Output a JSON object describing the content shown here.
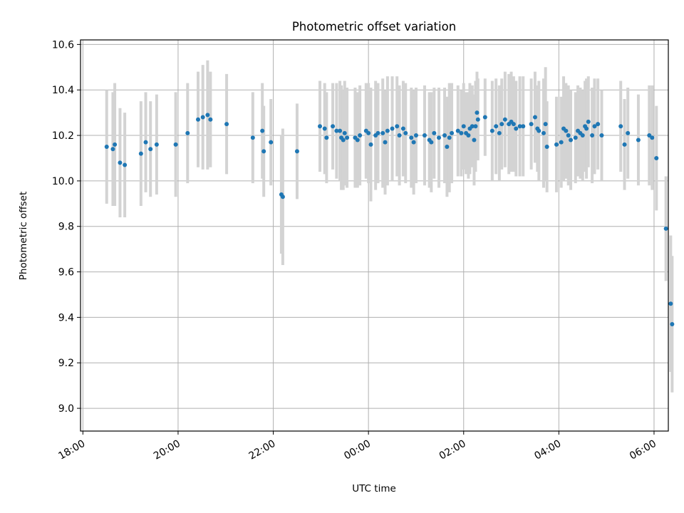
{
  "chart_data": {
    "type": "scatter",
    "title": "Photometric offset variation",
    "xlabel": "UTC time",
    "ylabel": "Photometric offset",
    "grid": true,
    "xlim": [
      -0.05,
      12.3
    ],
    "ylim": [
      8.9,
      10.62
    ],
    "x_unit": "hours since 18:00 UTC",
    "x_ticks": [
      {
        "value": 0,
        "label": "18:00"
      },
      {
        "value": 2,
        "label": "20:00"
      },
      {
        "value": 4,
        "label": "22:00"
      },
      {
        "value": 6,
        "label": "00:00"
      },
      {
        "value": 8,
        "label": "02:00"
      },
      {
        "value": 10,
        "label": "04:00"
      },
      {
        "value": 12,
        "label": "06:00"
      }
    ],
    "y_ticks": [
      {
        "value": 9.0,
        "label": "9.0"
      },
      {
        "value": 9.2,
        "label": "9.2"
      },
      {
        "value": 9.4,
        "label": "9.4"
      },
      {
        "value": 9.6,
        "label": "9.6"
      },
      {
        "value": 9.8,
        "label": "9.8"
      },
      {
        "value": 10.0,
        "label": "10.0"
      },
      {
        "value": 10.2,
        "label": "10.2"
      },
      {
        "value": 10.4,
        "label": "10.4"
      },
      {
        "value": 10.6,
        "label": "10.6"
      }
    ],
    "marker_color": "#1f77b4",
    "errorbar_color": "#d3d3d3",
    "points": [
      [
        0.5,
        10.15,
        0.25
      ],
      [
        0.63,
        10.14,
        0.25
      ],
      [
        0.67,
        10.16,
        0.27
      ],
      [
        0.78,
        10.08,
        0.24
      ],
      [
        0.88,
        10.07,
        0.23
      ],
      [
        1.22,
        10.12,
        0.23
      ],
      [
        1.32,
        10.17,
        0.22
      ],
      [
        1.42,
        10.14,
        0.21
      ],
      [
        1.55,
        10.16,
        0.22
      ],
      [
        1.95,
        10.16,
        0.23
      ],
      [
        2.2,
        10.21,
        0.22
      ],
      [
        2.42,
        10.27,
        0.21
      ],
      [
        2.52,
        10.28,
        0.23
      ],
      [
        2.62,
        10.29,
        0.24
      ],
      [
        2.68,
        10.27,
        0.21
      ],
      [
        3.02,
        10.25,
        0.22
      ],
      [
        3.57,
        10.19,
        0.2
      ],
      [
        3.77,
        10.22,
        0.21
      ],
      [
        3.8,
        10.13,
        0.2
      ],
      [
        3.95,
        10.17,
        0.19
      ],
      [
        4.17,
        9.94,
        0.26
      ],
      [
        4.2,
        9.93,
        0.3
      ],
      [
        4.5,
        10.13,
        0.21
      ],
      [
        4.98,
        10.24,
        0.2
      ],
      [
        5.08,
        10.23,
        0.2
      ],
      [
        5.12,
        10.19,
        0.2
      ],
      [
        5.25,
        10.24,
        0.19
      ],
      [
        5.33,
        10.22,
        0.21
      ],
      [
        5.4,
        10.22,
        0.22
      ],
      [
        5.43,
        10.19,
        0.23
      ],
      [
        5.47,
        10.18,
        0.22
      ],
      [
        5.5,
        10.21,
        0.23
      ],
      [
        5.55,
        10.19,
        0.22
      ],
      [
        5.72,
        10.19,
        0.22
      ],
      [
        5.77,
        10.18,
        0.21
      ],
      [
        5.82,
        10.2,
        0.22
      ],
      [
        5.95,
        10.22,
        0.21
      ],
      [
        6.0,
        10.21,
        0.22
      ],
      [
        6.05,
        10.16,
        0.25
      ],
      [
        6.15,
        10.2,
        0.24
      ],
      [
        6.2,
        10.21,
        0.22
      ],
      [
        6.3,
        10.21,
        0.24
      ],
      [
        6.35,
        10.17,
        0.23
      ],
      [
        6.4,
        10.22,
        0.24
      ],
      [
        6.5,
        10.23,
        0.23
      ],
      [
        6.6,
        10.24,
        0.22
      ],
      [
        6.65,
        10.2,
        0.22
      ],
      [
        6.73,
        10.23,
        0.21
      ],
      [
        6.78,
        10.21,
        0.22
      ],
      [
        6.9,
        10.19,
        0.22
      ],
      [
        6.95,
        10.17,
        0.23
      ],
      [
        7.0,
        10.2,
        0.21
      ],
      [
        7.18,
        10.2,
        0.22
      ],
      [
        7.28,
        10.18,
        0.21
      ],
      [
        7.32,
        10.17,
        0.22
      ],
      [
        7.38,
        10.21,
        0.2
      ],
      [
        7.48,
        10.19,
        0.22
      ],
      [
        7.6,
        10.2,
        0.21
      ],
      [
        7.65,
        10.15,
        0.22
      ],
      [
        7.7,
        10.19,
        0.24
      ],
      [
        7.75,
        10.21,
        0.22
      ],
      [
        7.88,
        10.22,
        0.2
      ],
      [
        7.95,
        10.21,
        0.19
      ],
      [
        8.0,
        10.24,
        0.19
      ],
      [
        8.05,
        10.21,
        0.18
      ],
      [
        8.1,
        10.2,
        0.19
      ],
      [
        8.13,
        10.23,
        0.2
      ],
      [
        8.18,
        10.24,
        0.18
      ],
      [
        8.22,
        10.18,
        0.2
      ],
      [
        8.25,
        10.24,
        0.2
      ],
      [
        8.28,
        10.3,
        0.18
      ],
      [
        8.3,
        10.27,
        0.18
      ],
      [
        8.45,
        10.28,
        0.17
      ],
      [
        8.6,
        10.22,
        0.22
      ],
      [
        8.68,
        10.24,
        0.21
      ],
      [
        8.75,
        10.21,
        0.21
      ],
      [
        8.8,
        10.25,
        0.2
      ],
      [
        8.87,
        10.27,
        0.21
      ],
      [
        8.95,
        10.25,
        0.22
      ],
      [
        9.0,
        10.26,
        0.22
      ],
      [
        9.05,
        10.25,
        0.21
      ],
      [
        9.1,
        10.23,
        0.21
      ],
      [
        9.18,
        10.24,
        0.22
      ],
      [
        9.25,
        10.24,
        0.22
      ],
      [
        9.42,
        10.25,
        0.2
      ],
      [
        9.5,
        10.28,
        0.2
      ],
      [
        9.55,
        10.23,
        0.19
      ],
      [
        9.58,
        10.22,
        0.22
      ],
      [
        9.68,
        10.21,
        0.24
      ],
      [
        9.72,
        10.25,
        0.25
      ],
      [
        9.75,
        10.15,
        0.2
      ],
      [
        9.95,
        10.16,
        0.21
      ],
      [
        10.05,
        10.17,
        0.2
      ],
      [
        10.1,
        10.23,
        0.23
      ],
      [
        10.15,
        10.22,
        0.21
      ],
      [
        10.2,
        10.2,
        0.22
      ],
      [
        10.25,
        10.18,
        0.22
      ],
      [
        10.35,
        10.19,
        0.2
      ],
      [
        10.4,
        10.22,
        0.2
      ],
      [
        10.45,
        10.21,
        0.2
      ],
      [
        10.5,
        10.2,
        0.2
      ],
      [
        10.55,
        10.24,
        0.2
      ],
      [
        10.58,
        10.23,
        0.22
      ],
      [
        10.62,
        10.26,
        0.2
      ],
      [
        10.7,
        10.2,
        0.21
      ],
      [
        10.75,
        10.24,
        0.21
      ],
      [
        10.82,
        10.25,
        0.2
      ],
      [
        10.9,
        10.2,
        0.2
      ],
      [
        11.3,
        10.24,
        0.2
      ],
      [
        11.38,
        10.16,
        0.2
      ],
      [
        11.45,
        10.21,
        0.2
      ],
      [
        11.67,
        10.18,
        0.2
      ],
      [
        11.9,
        10.2,
        0.22
      ],
      [
        11.96,
        10.19,
        0.23
      ],
      [
        12.05,
        10.1,
        0.23
      ],
      [
        12.25,
        9.79,
        0.23
      ],
      [
        12.35,
        9.46,
        0.3
      ],
      [
        12.38,
        9.37,
        0.3
      ]
    ]
  }
}
